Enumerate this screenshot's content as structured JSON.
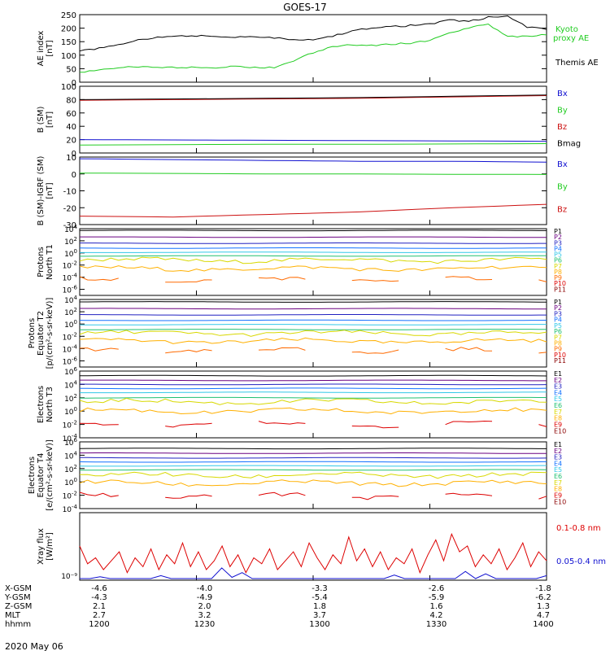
{
  "title": "GOES-17",
  "date_label": "2020 May 06",
  "colors": {
    "black": "#000000",
    "green": "#22cc22",
    "blue": "#1010d0",
    "red": "#cc1010"
  },
  "chart_data": [
    {
      "id": "ae",
      "type": "line",
      "ylabel": [
        "AE index",
        "[nT]"
      ],
      "ylim": [
        0,
        250
      ],
      "yticks": [
        "250",
        "200",
        "150",
        "100",
        "50",
        "0"
      ],
      "x": [
        "1200",
        "1205",
        "1210",
        "1215",
        "1220",
        "1225",
        "1230",
        "1235",
        "1240",
        "1245",
        "1250",
        "1255",
        "1300",
        "1305",
        "1310",
        "1315",
        "1320",
        "1325",
        "1330",
        "1335",
        "1340",
        "1345",
        "1350",
        "1355",
        "1400"
      ],
      "series": [
        {
          "name": "Themis AE",
          "color": "#000000",
          "values": [
            115,
            125,
            140,
            155,
            165,
            170,
            172,
            170,
            168,
            170,
            165,
            158,
            155,
            170,
            190,
            200,
            205,
            210,
            215,
            230,
            225,
            240,
            245,
            205,
            195
          ]
        },
        {
          "name": "Kyoto proxy AE",
          "color": "#22cc22",
          "values": [
            35,
            45,
            55,
            55,
            55,
            55,
            55,
            55,
            60,
            55,
            55,
            80,
            110,
            130,
            140,
            135,
            140,
            145,
            155,
            180,
            200,
            215,
            170,
            170,
            175
          ]
        }
      ],
      "legend": [
        {
          "text": "Kyoto",
          "color": "#22cc22"
        },
        {
          "text": "proxy AE",
          "color": "#22cc22"
        },
        {
          "text": "Themis AE",
          "color": "#000000"
        }
      ]
    },
    {
      "id": "bsm",
      "type": "line",
      "ylabel": [
        "B (SM)",
        "[nT]"
      ],
      "ylim": [
        0,
        100
      ],
      "yticks": [
        "100",
        "80",
        "60",
        "40",
        "20",
        "0"
      ],
      "series": [
        {
          "name": "Bx",
          "color": "#1010d0",
          "values": [
            20,
            19.5,
            19,
            18.5,
            18,
            17.5
          ]
        },
        {
          "name": "By",
          "color": "#22cc22",
          "values": [
            12,
            12.5,
            13,
            13,
            13.5,
            14
          ]
        },
        {
          "name": "Bz",
          "color": "#cc1010",
          "values": [
            79,
            80,
            81,
            82,
            84,
            86
          ]
        },
        {
          "name": "Bmag",
          "color": "#000000",
          "values": [
            80,
            81,
            82,
            83,
            85,
            87
          ]
        }
      ],
      "legend": [
        {
          "text": "Bx",
          "color": "#1010d0"
        },
        {
          "text": "By",
          "color": "#22cc22"
        },
        {
          "text": "Bz",
          "color": "#cc1010"
        },
        {
          "text": "Bmag",
          "color": "#000000"
        }
      ]
    },
    {
      "id": "bigrf",
      "type": "line",
      "ylabel": [
        "B (SM)-IGRF (SM)",
        "[nT]"
      ],
      "ylim": [
        -30,
        10
      ],
      "yticks": [
        "10",
        "0",
        "-10",
        "-20",
        "-30"
      ],
      "series": [
        {
          "name": "Bx",
          "color": "#1010d0",
          "values": [
            9,
            8.5,
            8,
            7.5,
            7.5,
            7
          ]
        },
        {
          "name": "By",
          "color": "#22cc22",
          "values": [
            0.5,
            0.3,
            0,
            0,
            -0.2,
            -0.3
          ]
        },
        {
          "name": "Bz",
          "color": "#cc1010",
          "values": [
            -25,
            -25.5,
            -24,
            -22.5,
            -20,
            -18
          ]
        }
      ],
      "legend": [
        {
          "text": "Bx",
          "color": "#1010d0"
        },
        {
          "text": "By",
          "color": "#22cc22"
        },
        {
          "text": "Bz",
          "color": "#cc1010"
        }
      ]
    },
    {
      "id": "pt1",
      "type": "line",
      "log": true,
      "ylabel": [
        "Protons",
        "North T1"
      ],
      "ylim_exp": [
        -7,
        4
      ],
      "ytick_exps": [
        4,
        2,
        0,
        -2,
        -4,
        -6
      ],
      "levels_exp": [
        3.7,
        2.6,
        1.6,
        0.8,
        0.1,
        -0.5,
        -1.2,
        -2.6,
        -4.4
      ],
      "legend": [
        {
          "text": "P1",
          "color": "#000000"
        },
        {
          "text": "P2",
          "color": "#6a0080"
        },
        {
          "text": "P3",
          "color": "#2020c0"
        },
        {
          "text": "P4",
          "color": "#1070ff"
        },
        {
          "text": "P5",
          "color": "#30c8e8"
        },
        {
          "text": "P6",
          "color": "#20c070"
        },
        {
          "text": "P7",
          "color": "#d8d800"
        },
        {
          "text": "P8",
          "color": "#ffb000"
        },
        {
          "text": "P9",
          "color": "#ff6a00"
        },
        {
          "text": "P10",
          "color": "#dd0000"
        },
        {
          "text": "P11",
          "color": "#8b0000"
        }
      ]
    },
    {
      "id": "pt2",
      "type": "line",
      "log": true,
      "ylabel": [
        "Protons",
        "Equator T2",
        "[p/(cm²-s-sr-keV)]"
      ],
      "ylim_exp": [
        -7,
        4
      ],
      "ytick_exps": [
        4,
        2,
        0,
        -2,
        -4,
        -6
      ],
      "levels_exp": [
        3.6,
        2.5,
        1.5,
        0.6,
        -0.1,
        -0.9,
        -1.5,
        -2.8,
        -4.3
      ],
      "legend": [
        {
          "text": "P1",
          "color": "#000000"
        },
        {
          "text": "P2",
          "color": "#6a0080"
        },
        {
          "text": "P3",
          "color": "#2020c0"
        },
        {
          "text": "P4",
          "color": "#1070ff"
        },
        {
          "text": "P5",
          "color": "#30c8e8"
        },
        {
          "text": "P6",
          "color": "#20c070"
        },
        {
          "text": "P7",
          "color": "#d8d800"
        },
        {
          "text": "P8",
          "color": "#ffb000"
        },
        {
          "text": "P9",
          "color": "#ff6a00"
        },
        {
          "text": "P10",
          "color": "#dd0000"
        },
        {
          "text": "P11",
          "color": "#8b0000"
        }
      ]
    },
    {
      "id": "et3",
      "type": "line",
      "log": true,
      "ylabel": [
        "Electrons",
        "North T3"
      ],
      "ylim_exp": [
        -4,
        6
      ],
      "ytick_exps": [
        6,
        4,
        2,
        0,
        -2,
        -4
      ],
      "levels_exp": [
        5.3,
        4.6,
        4.0,
        3.4,
        2.8,
        2.0,
        1.4,
        0.0,
        -2.0
      ],
      "legend": [
        {
          "text": "E1",
          "color": "#000000"
        },
        {
          "text": "E2",
          "color": "#6a0080"
        },
        {
          "text": "E3",
          "color": "#2020c0"
        },
        {
          "text": "E4",
          "color": "#1070ff"
        },
        {
          "text": "E5",
          "color": "#30c8e8"
        },
        {
          "text": "E6",
          "color": "#20c070"
        },
        {
          "text": "E7",
          "color": "#d8d800"
        },
        {
          "text": "E8",
          "color": "#ffb000"
        },
        {
          "text": "E9",
          "color": "#dd0000"
        },
        {
          "text": "E10",
          "color": "#8b0000"
        }
      ]
    },
    {
      "id": "et4",
      "type": "line",
      "log": true,
      "ylabel": [
        "Electrons",
        "Equator T4",
        "[e/(cm²-s-sr-keV)]"
      ],
      "ylim_exp": [
        -4,
        6
      ],
      "ytick_exps": [
        6,
        4,
        2,
        0,
        -2,
        -4
      ],
      "levels_exp": [
        5.0,
        4.3,
        3.6,
        3.0,
        2.4,
        1.8,
        1.0,
        -0.2,
        -2.1
      ],
      "legend": [
        {
          "text": "E1",
          "color": "#000000"
        },
        {
          "text": "E2",
          "color": "#6a0080"
        },
        {
          "text": "E3",
          "color": "#2020c0"
        },
        {
          "text": "E4",
          "color": "#1070ff"
        },
        {
          "text": "E5",
          "color": "#30c8e8"
        },
        {
          "text": "E6",
          "color": "#20c070"
        },
        {
          "text": "E7",
          "color": "#d8d800"
        },
        {
          "text": "E8",
          "color": "#ffb000"
        },
        {
          "text": "E9",
          "color": "#dd0000"
        },
        {
          "text": "E10",
          "color": "#8b0000"
        }
      ]
    },
    {
      "id": "xray",
      "type": "line",
      "ylabel": [
        "Xray flux",
        "[W/m²]"
      ],
      "ytick_label": "10⁻⁹",
      "series": [
        {
          "name": "0.1-0.8 nm",
          "color": "#dd0000",
          "level_frac": [
            0.55,
            0.25,
            0.35,
            0.15,
            0.3,
            0.45,
            0.1,
            0.35,
            0.2,
            0.5,
            0.15,
            0.4,
            0.25,
            0.6,
            0.2,
            0.45,
            0.15,
            0.3,
            0.55,
            0.2,
            0.4,
            0.1,
            0.35,
            0.25,
            0.5,
            0.15,
            0.3,
            0.45,
            0.2,
            0.6,
            0.35,
            0.15,
            0.4,
            0.25,
            0.7,
            0.3,
            0.5,
            0.2,
            0.45,
            0.15,
            0.35,
            0.25,
            0.5,
            0.1,
            0.4,
            0.65,
            0.3,
            0.75,
            0.45,
            0.55,
            0.2,
            0.4,
            0.25,
            0.5,
            0.15,
            0.35,
            0.6,
            0.2,
            0.45,
            0.3
          ]
        },
        {
          "name": "0.05-0.4 nm",
          "color": "#1010d0",
          "level_frac": [
            0.0,
            0.0,
            0.03,
            0.0,
            0.0,
            0.0,
            0.0,
            0.0,
            0.05,
            0.0,
            0.0,
            0.0,
            0.0,
            0.0,
            0.18,
            0.02,
            0.1,
            0.0,
            0.0,
            0.0,
            0.0,
            0.0,
            0.0,
            0.0,
            0.0,
            0.0,
            0.0,
            0.0,
            0.0,
            0.0,
            0.0,
            0.06,
            0.0,
            0.0,
            0.0,
            0.0,
            0.0,
            0.0,
            0.12,
            0.0,
            0.08,
            0.0,
            0.0,
            0.0,
            0.0,
            0.0,
            0.05
          ]
        }
      ],
      "legend": [
        {
          "text": "0.1-0.8 nm",
          "color": "#dd0000"
        },
        {
          "text": "0.05-0.4 nm",
          "color": "#1010d0"
        }
      ]
    }
  ],
  "axis_table": {
    "row_labels": [
      "X-GSM",
      "Y-GSM",
      "Z-GSM",
      "MLT",
      "hhmm"
    ],
    "columns": [
      [
        "-4.6",
        "-4.3",
        "2.1",
        "2.7",
        "1200"
      ],
      [
        "-4.0",
        "-4.9",
        "2.0",
        "3.2",
        "1230"
      ],
      [
        "-3.3",
        "-5.4",
        "1.8",
        "3.7",
        "1300"
      ],
      [
        "-2.6",
        "-5.9",
        "1.6",
        "4.2",
        "1330"
      ],
      [
        "-1.8",
        "-6.2",
        "1.3",
        "4.7",
        "1400"
      ]
    ]
  }
}
